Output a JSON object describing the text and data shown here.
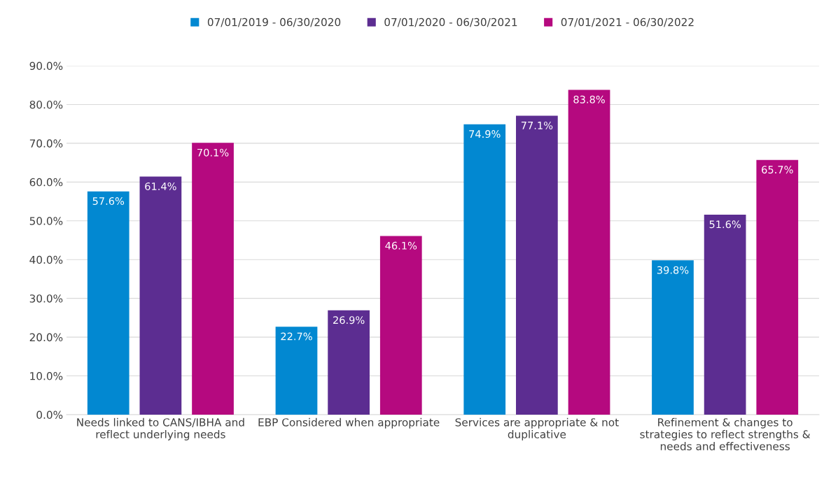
{
  "chart_data": {
    "type": "bar",
    "categories": [
      "Needs linked to CANS/IBHA and\nreflect underlying needs",
      "EBP Considered when appropriate",
      "Services are appropriate & not\nduplicative",
      "Refinement & changes to\nstrategies to reflect strengths &\nneeds and effectiveness"
    ],
    "series": [
      {
        "name": "07/01/2019 - 06/30/2020",
        "color": "#0288d1",
        "values": [
          57.6,
          22.7,
          74.9,
          39.8
        ],
        "value_labels": [
          "57.6%",
          "22.7%",
          "74.9%",
          "39.8%"
        ]
      },
      {
        "name": "07/01/2020 - 06/30/2021",
        "color": "#5c2d91",
        "values": [
          61.4,
          26.9,
          77.1,
          51.6
        ],
        "value_labels": [
          "61.4%",
          "26.9%",
          "77.1%",
          "51.6%"
        ]
      },
      {
        "name": "07/01/2021 - 06/30/2022",
        "color": "#b5097f",
        "values": [
          70.1,
          46.1,
          83.8,
          65.7
        ],
        "value_labels": [
          "70.1%",
          "46.1%",
          "83.8%",
          "65.7%"
        ]
      }
    ],
    "ylim": [
      0,
      90
    ],
    "yticks": [
      {
        "value": 0,
        "label": "0.0%"
      },
      {
        "value": 10,
        "label": "10.0%"
      },
      {
        "value": 20,
        "label": "20.0%"
      },
      {
        "value": 30,
        "label": "30.0%"
      },
      {
        "value": 40,
        "label": "40.0%"
      },
      {
        "value": 50,
        "label": "50.0%"
      },
      {
        "value": 60,
        "label": "60.0%"
      },
      {
        "value": 70,
        "label": "70.0%"
      },
      {
        "value": 80,
        "label": "80.0%"
      },
      {
        "value": 90,
        "label": "90.0%"
      }
    ],
    "grid": "y",
    "legend": "top"
  }
}
